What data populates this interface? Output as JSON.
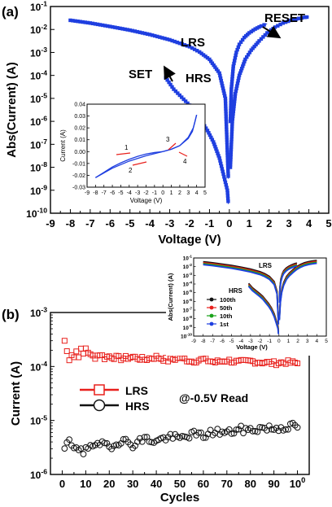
{
  "chart_data": [
    {
      "panel_label": "(a)",
      "type": "scatter",
      "xlabel": "Voltage (V)",
      "ylabel": "Abs(Current) (A)",
      "xlim": [
        -9,
        5
      ],
      "ylim_exponent": [
        -10,
        -1
      ],
      "yscale": "log",
      "x_ticks": [
        "-9",
        "-8",
        "-7",
        "-6",
        "-5",
        "-4",
        "-3",
        "-2",
        "-1",
        "0",
        "1",
        "2",
        "3",
        "4",
        "5"
      ],
      "y_ticks": [
        "10-10",
        "10-9",
        "10-8",
        "10-7",
        "10-6",
        "10-5",
        "10-4",
        "10-3",
        "10-2",
        "10-1"
      ],
      "marker_color": "#1f3fe0",
      "annotations": [
        "LRS",
        "HRS",
        "SET",
        "RESET"
      ],
      "series": [
        {
          "branch": "LRS_negative",
          "x": [
            -8.0,
            -7.0,
            -6.0,
            -5.0,
            -4.0,
            -3.0,
            -2.0,
            -1.5,
            -1.0,
            -0.5,
            -0.2,
            -0.05
          ],
          "log_y": [
            -1.6,
            -1.72,
            -1.87,
            -2.03,
            -2.22,
            -2.45,
            -2.75,
            -2.98,
            -3.3,
            -3.9,
            -5.0,
            -8.5
          ]
        },
        {
          "branch": "HRS_negative",
          "x": [
            -3.2,
            -2.8,
            -2.4,
            -2.0,
            -1.7,
            -1.4,
            -1.1,
            -0.8,
            -0.5,
            -0.3,
            -0.1,
            -0.05
          ],
          "log_y": [
            -4.1,
            -4.6,
            -4.95,
            -5.3,
            -5.6,
            -6.0,
            -6.4,
            -6.9,
            -7.6,
            -8.3,
            -9.0,
            -9.6
          ]
        },
        {
          "branch": "HRS_positive",
          "x": [
            0.05,
            0.15,
            0.3,
            0.5,
            0.8,
            1.1,
            1.5,
            1.9,
            2.3,
            2.7,
            3.1,
            3.5,
            3.8,
            4.0
          ],
          "log_y": [
            -8.0,
            -6.0,
            -4.8,
            -4.0,
            -3.3,
            -2.9,
            -2.5,
            -2.15,
            -1.9,
            -1.72,
            -1.6,
            -1.52,
            -1.47,
            -1.45
          ]
        },
        {
          "branch": "LRS_positive",
          "x": [
            0.05,
            0.1,
            0.2,
            0.35,
            0.5,
            0.75,
            1.0,
            1.3,
            1.6,
            1.9
          ],
          "log_y": [
            -6.0,
            -4.6,
            -3.6,
            -3.0,
            -2.65,
            -2.35,
            -2.15,
            -1.98,
            -1.85,
            -1.75
          ]
        }
      ],
      "inset": {
        "type": "line",
        "xlabel": "Voltage (V)",
        "ylabel": "Current (A)",
        "xlim": [
          -9,
          5
        ],
        "ylim": [
          -0.03,
          0.04
        ],
        "x_ticks": [
          "-9",
          "-8",
          "-7",
          "-6",
          "-5",
          "-4",
          "-3",
          "-2",
          "-1",
          "0",
          "1",
          "2",
          "3",
          "4",
          "5"
        ],
        "y_ticks": [
          "0.04",
          "0.03",
          "0.02",
          "0.01",
          "0.00",
          "-0.01",
          "-0.02",
          "-0.03"
        ],
        "sweep_labels": [
          "1",
          "2",
          "3",
          "4"
        ],
        "series": [
          {
            "x": [
              -8.0,
              -7.0,
              -6.0,
              -5.0,
              -4.0,
              -3.0,
              -2.0,
              -1.0,
              0.0
            ],
            "y": [
              -0.022,
              -0.0175,
              -0.013,
              -0.0095,
              -0.0065,
              -0.004,
              -0.002,
              -0.0008,
              0.0
            ]
          },
          {
            "x": [
              0.0,
              -2.0,
              -4.0,
              -6.0,
              -8.0
            ],
            "y": [
              0.0,
              -0.0035,
              -0.008,
              -0.014,
              -0.022
            ]
          },
          {
            "x": [
              0.0,
              1.0,
              2.0,
              3.0,
              3.5,
              3.8,
              4.0
            ],
            "y": [
              0.0,
              0.002,
              0.005,
              0.011,
              0.017,
              0.025,
              0.031
            ]
          },
          {
            "x": [
              4.0,
              3.6,
              3.0,
              2.0,
              1.0,
              0.0
            ],
            "y": [
              0.031,
              0.02,
              0.012,
              0.005,
              0.002,
              0.0
            ]
          }
        ]
      }
    },
    {
      "panel_label": "(b)",
      "type": "scatter",
      "xlabel": "Cycles",
      "ylabel": "Current (A)",
      "xlim": [
        -5,
        105
      ],
      "ylim_exponent": [
        -6,
        -3
      ],
      "yscale": "log",
      "x_ticks": [
        "0",
        "10",
        "20",
        "30",
        "40",
        "50",
        "60",
        "70",
        "80",
        "90",
        "100"
      ],
      "y_ticks": [
        "10-3",
        "10-4",
        "10-5",
        "10-6"
      ],
      "annotation": "@-0.5V Read",
      "legend": [
        "LRS",
        "HRS"
      ],
      "legend_position": "center-left",
      "lrs_color": "#e8201c",
      "hrs_color": "#111111",
      "series": [
        {
          "name": "LRS",
          "x": [
            1,
            2,
            3,
            4,
            5,
            6,
            7,
            8,
            9,
            10,
            12,
            14,
            16,
            18,
            20,
            25,
            30,
            35,
            40,
            45,
            50,
            55,
            60,
            65,
            70,
            75,
            80,
            85,
            90,
            95,
            100
          ],
          "y": [
            0.0003,
            0.00019,
            0.00014,
            0.00017,
            0.00015,
            0.00019,
            0.00016,
            0.0002,
            0.00017,
            0.00022,
            0.00016,
            0.00015,
            0.00017,
            0.000145,
            0.000155,
            0.00014,
            0.00015,
            0.000135,
            0.00015,
            0.00013,
            0.000145,
            0.000125,
            0.000135,
            0.00012,
            0.00013,
            0.00012,
            0.000125,
            0.00012,
            0.000115,
            0.00012,
            0.000115
          ]
        },
        {
          "name": "HRS",
          "x": [
            1,
            2,
            3,
            4,
            5,
            6,
            7,
            8,
            9,
            10,
            12,
            14,
            16,
            18,
            20,
            25,
            30,
            35,
            40,
            45,
            50,
            55,
            60,
            65,
            70,
            75,
            80,
            85,
            90,
            95,
            100
          ],
          "y": [
            2.6e-06,
            3.8e-06,
            4.2e-06,
            3.1e-06,
            2.8e-06,
            3.4e-06,
            2.9e-06,
            3.3e-06,
            2.6e-06,
            3.5e-06,
            3e-06,
            3.6e-06,
            3.1e-06,
            3.9e-06,
            3.3e-06,
            4.3e-06,
            3.6e-06,
            4.6e-06,
            4.1e-06,
            5e-06,
            4.6e-06,
            5.6e-06,
            5.2e-06,
            6.3e-06,
            5.8e-06,
            6.8e-06,
            6.6e-06,
            7.3e-06,
            7.1e-06,
            7.6e-06,
            7.9e-06
          ]
        }
      ],
      "inset": {
        "type": "scatter",
        "xlabel": "Voltage (V)",
        "ylabel": "Abs(Current) (A)",
        "x_ticks": [
          "-9",
          "-8",
          "-7",
          "-6",
          "-5",
          "-4",
          "-3",
          "-2",
          "-1",
          "0",
          "1",
          "2",
          "3",
          "4",
          "5"
        ],
        "y_ticks": [
          "10-1",
          "10-2",
          "10-3",
          "10-4",
          "10-5",
          "10-6",
          "10-7",
          "10-8",
          "10-9",
          "10-10"
        ],
        "labels": [
          "LRS",
          "HRS"
        ],
        "legend": [
          {
            "name": "100th",
            "color": "#111111"
          },
          {
            "name": "50th",
            "color": "#e8201c"
          },
          {
            "name": "10th",
            "color": "#1aa31a"
          },
          {
            "name": "1st",
            "color": "#1f3fe0"
          }
        ]
      }
    }
  ]
}
